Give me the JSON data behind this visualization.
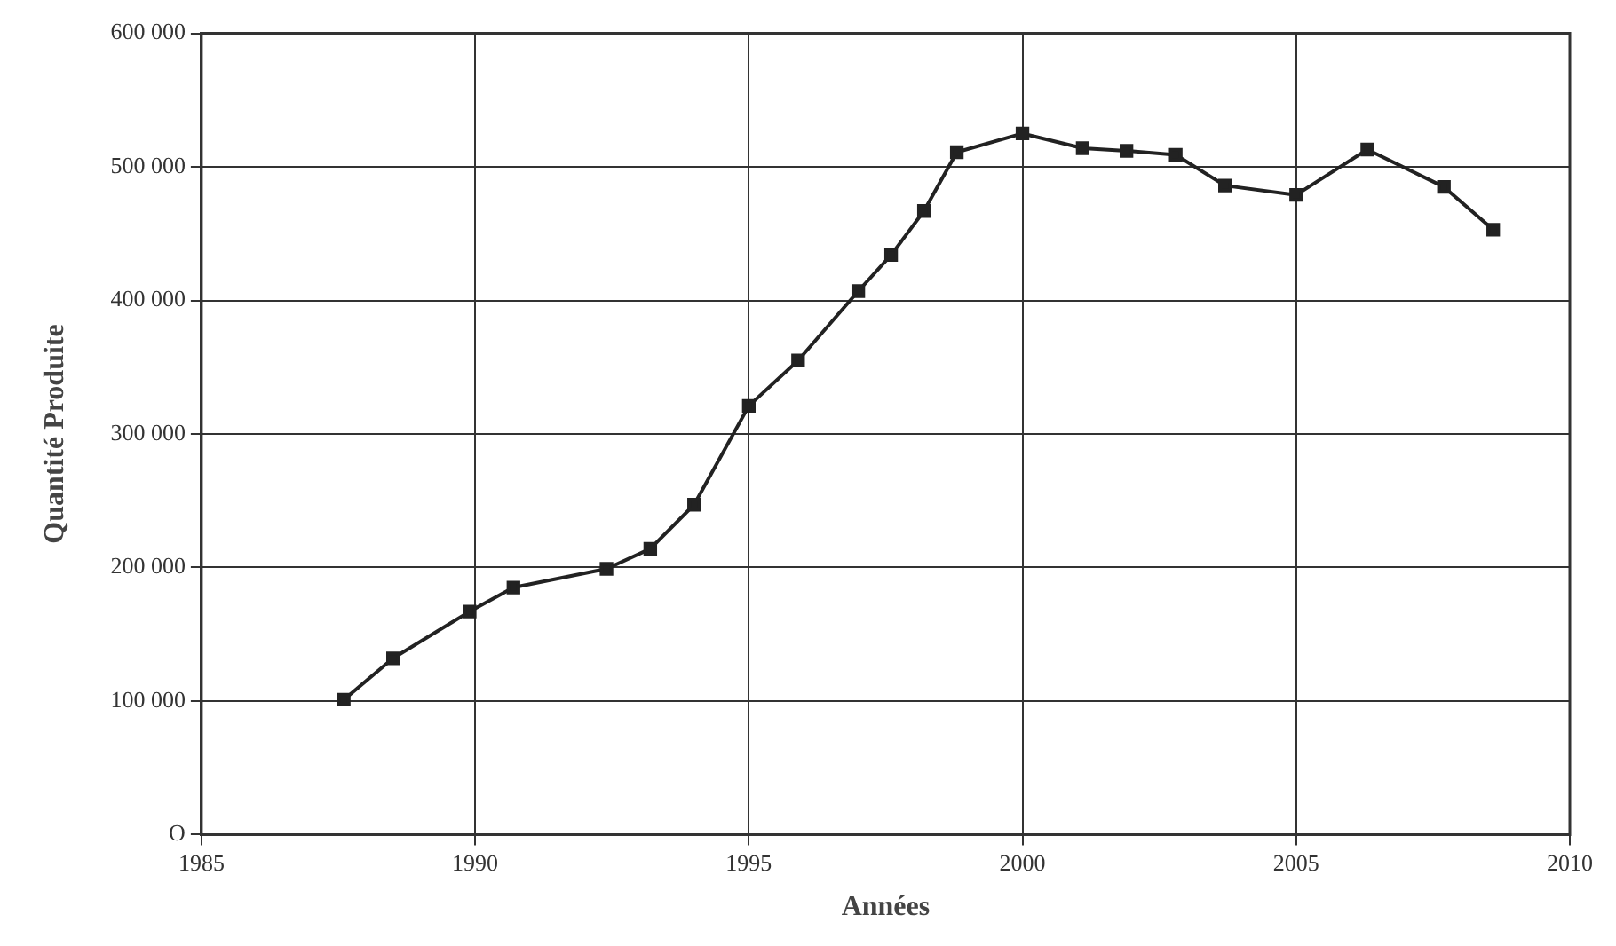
{
  "chart_data": {
    "type": "line",
    "xlabel": "Années",
    "ylabel": "Quantité Produite",
    "x": [
      1987.6,
      1988.5,
      1989.9,
      1990.7,
      1992.4,
      1993.2,
      1994.0,
      1995.0,
      1995.9,
      1997.0,
      1997.6,
      1998.2,
      1998.8,
      2000.0,
      2001.1,
      2001.9,
      2002.8,
      2003.7,
      2005.0,
      2006.3,
      2007.7,
      2008.6
    ],
    "series": [
      {
        "color": "#222222",
        "values": [
          101000,
          132000,
          167000,
          185000,
          199000,
          214000,
          247000,
          321000,
          355000,
          407000,
          434000,
          467000,
          511000,
          525000,
          514000,
          512000,
          509000,
          486000,
          479000,
          513000,
          485000,
          453000
        ]
      }
    ],
    "xlim": [
      1985,
      2010
    ],
    "xticks": [
      1985,
      1990,
      1995,
      2000,
      2005,
      2010
    ],
    "ylim": [
      0,
      600000
    ],
    "yticks": [
      {
        "value": 0,
        "label": "O"
      },
      {
        "value": 100000,
        "label": "100 000"
      },
      {
        "value": 200000,
        "label": "200 000"
      },
      {
        "value": 300000,
        "label": "300 000"
      },
      {
        "value": 400000,
        "label": "400 000"
      },
      {
        "value": 500000,
        "label": "500 000"
      },
      {
        "value": 600000,
        "label": "600 000"
      }
    ],
    "grid": true,
    "marker": "square",
    "line_style": "solid",
    "legend": false
  }
}
